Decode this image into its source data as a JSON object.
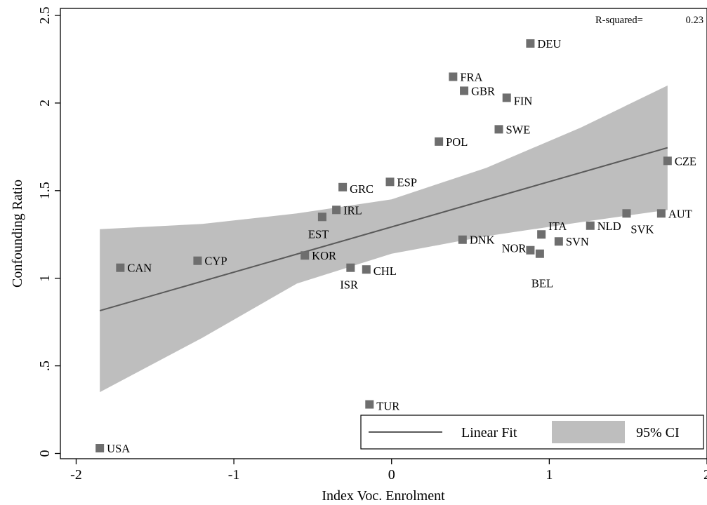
{
  "chart_data": {
    "type": "scatter",
    "xlabel": "Index Voc. Enrolment",
    "ylabel": "Confounding Ratio",
    "xlim": [
      -2.1,
      2.0
    ],
    "ylim": [
      -0.03,
      2.54
    ],
    "x_ticks": [
      -2,
      -1,
      0,
      1,
      2
    ],
    "x_tick_labels": [
      "-2",
      "-1",
      "0",
      "1",
      "2"
    ],
    "y_ticks": [
      0,
      0.5,
      1,
      1.5,
      2,
      2.5
    ],
    "y_tick_labels": [
      "0",
      ".5",
      "1",
      "1.5",
      "2",
      "2.5"
    ],
    "grid": false,
    "annotation": {
      "label": "R-squared=",
      "value": "0.23"
    },
    "points": [
      {
        "label": "DEU",
        "x": 0.88,
        "y": 2.34
      },
      {
        "label": "FRA",
        "x": 0.39,
        "y": 2.15
      },
      {
        "label": "GBR",
        "x": 0.46,
        "y": 2.07
      },
      {
        "label": "FIN",
        "x": 0.73,
        "y": 2.03
      },
      {
        "label": "SWE",
        "x": 0.68,
        "y": 1.85
      },
      {
        "label": "POL",
        "x": 0.3,
        "y": 1.78
      },
      {
        "label": "CZE",
        "x": 1.75,
        "y": 1.67
      },
      {
        "label": "ESP",
        "x": -0.01,
        "y": 1.55
      },
      {
        "label": "GRC",
        "x": -0.31,
        "y": 1.52
      },
      {
        "label": "IRL",
        "x": -0.35,
        "y": 1.39
      },
      {
        "label": "EST",
        "x": -0.44,
        "y": 1.35
      },
      {
        "label": "SVK",
        "x": 1.49,
        "y": 1.37
      },
      {
        "label": "AUT",
        "x": 1.71,
        "y": 1.37
      },
      {
        "label": "NLD",
        "x": 1.26,
        "y": 1.3
      },
      {
        "label": "ITA",
        "x": 0.95,
        "y": 1.25
      },
      {
        "label": "DNK",
        "x": 0.45,
        "y": 1.22
      },
      {
        "label": "SVN",
        "x": 1.06,
        "y": 1.21
      },
      {
        "label": "NOR",
        "x": 0.88,
        "y": 1.16
      },
      {
        "label": "BEL",
        "x": 0.94,
        "y": 1.14
      },
      {
        "label": "KOR",
        "x": -0.55,
        "y": 1.13
      },
      {
        "label": "CYP",
        "x": -1.23,
        "y": 1.1
      },
      {
        "label": "CAN",
        "x": -1.72,
        "y": 1.06
      },
      {
        "label": "ISR",
        "x": -0.26,
        "y": 1.06
      },
      {
        "label": "CHL",
        "x": -0.16,
        "y": 1.05
      },
      {
        "label": "TUR",
        "x": -0.14,
        "y": 0.28
      },
      {
        "label": "USA",
        "x": -1.85,
        "y": 0.03
      }
    ],
    "fit": {
      "name": "Linear Fit",
      "x": [
        -1.85,
        1.75
      ],
      "y": [
        0.815,
        1.745
      ]
    },
    "ci": {
      "name": "95% CI",
      "x": [
        -1.85,
        -1.2,
        -0.6,
        0.0,
        0.6,
        1.2,
        1.75
      ],
      "lower": [
        0.35,
        0.66,
        0.97,
        1.14,
        1.24,
        1.32,
        1.39
      ],
      "upper": [
        1.28,
        1.31,
        1.37,
        1.45,
        1.63,
        1.86,
        2.1
      ]
    },
    "legend": {
      "placement": "bottom-right",
      "entries": [
        "Linear Fit",
        "95% CI"
      ]
    },
    "colors": {
      "ci_band": "#bebebe",
      "fit_line": "#5a5a5a",
      "marker": "#6e6e6e",
      "axis": "#000000"
    }
  }
}
